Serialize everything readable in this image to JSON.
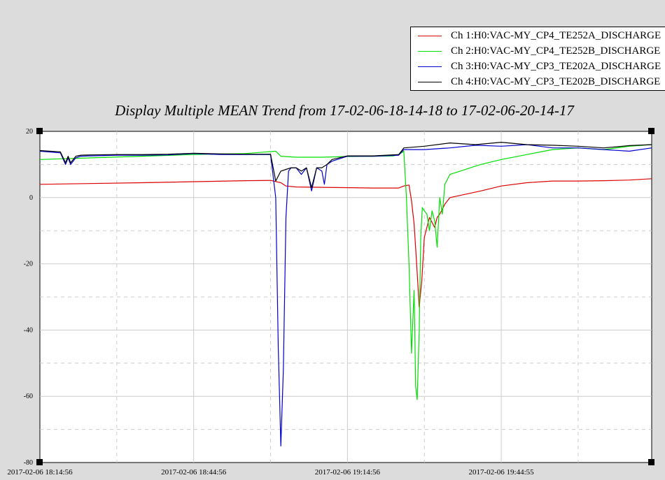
{
  "legend": {
    "items": [
      {
        "label": "Ch 1:H0:VAC-MY_CP4_TE252A_DISCHARGE",
        "color": "#dd0000"
      },
      {
        "label": "Ch 2:H0:VAC-MY_CP4_TE252B_DISCHARGE",
        "color": "#00e000"
      },
      {
        "label": "Ch 3:H0:VAC-MY_CP3_TE202A_DISCHARGE",
        "color": "#0000cc"
      },
      {
        "label": "Ch 4:H0:VAC-MY_CP3_TE202B_DISCHARGE",
        "color": "#000000"
      }
    ]
  },
  "chart_data": {
    "type": "line",
    "title": "Display Multiple MEAN Trend from 17-02-06-18-14-18 to 17-02-06-20-14-17",
    "xlabel": "",
    "ylabel": "",
    "ylim": [
      -80,
      20
    ],
    "xlim": [
      "2017-02-06 18:14:56",
      "2017-02-06 20:14:17"
    ],
    "yticks": [
      "20",
      "0",
      "-20",
      "-40",
      "-60",
      "-80"
    ],
    "xticks": [
      "2017-02-06 18:14:56",
      "2017-02-06 18:44:56",
      "2017-02-06 19:14:56",
      "2017-02-06 19:44:55"
    ],
    "grid": true,
    "legend_position": "top-right",
    "series": [
      {
        "name": "Ch 1:H0:VAC-MY_CP4_TE252A_DISCHARGE",
        "color": "#dd0000",
        "x_minutes": [
          0,
          20,
          40,
          45,
          47,
          48,
          50,
          55,
          65,
          70,
          71,
          72,
          72.5,
          73,
          73.5,
          74,
          74.5,
          75,
          76,
          77,
          77.5,
          78,
          79,
          80,
          83,
          86,
          90,
          95,
          100,
          105,
          110,
          115,
          119.35
        ],
        "values": [
          4,
          4.5,
          5.1,
          5.2,
          4.5,
          3.5,
          3.2,
          3.1,
          2.9,
          2.9,
          3.5,
          3.8,
          -1,
          -8,
          -20,
          -33,
          -25,
          -12,
          -6,
          -9,
          -6,
          -5,
          -2,
          0,
          1,
          2,
          3.5,
          4.5,
          5,
          5,
          5.1,
          5.3,
          5.7
        ]
      },
      {
        "name": "Ch 2:H0:VAC-MY_CP4_TE252B_DISCHARGE",
        "color": "#00e000",
        "x_minutes": [
          0,
          10,
          20,
          30,
          40,
          46,
          47,
          50,
          55,
          60,
          65,
          69,
          70,
          71,
          71.5,
          72,
          72.5,
          73,
          73.3,
          73.6,
          74,
          74.3,
          74.6,
          75,
          75.5,
          76,
          76.5,
          77,
          77.5,
          78,
          78.5,
          79,
          80,
          82,
          84,
          86,
          90,
          95,
          100,
          105,
          110,
          115,
          119.35
        ],
        "values": [
          11.5,
          12,
          12.5,
          13,
          13.3,
          14,
          12.5,
          12.2,
          12.2,
          12.4,
          12.5,
          12.6,
          13,
          14,
          0,
          -20,
          -47,
          -28,
          -57,
          -61,
          -40,
          -12,
          -3,
          -4,
          -5,
          -10,
          -4,
          -7,
          -15,
          0,
          -5,
          4,
          7,
          8,
          9,
          10,
          11.5,
          13,
          14.5,
          15,
          14.5,
          15.5,
          16
        ]
      },
      {
        "name": "Ch 3:H0:VAC-MY_CP3_TE202A_DISCHARGE",
        "color": "#0000cc",
        "x_minutes": [
          0,
          4,
          5,
          5.5,
          6,
          7,
          8,
          10,
          15,
          20,
          25,
          30,
          35,
          40,
          45,
          46,
          46.5,
          47,
          47.5,
          48,
          48.5,
          49,
          50,
          51,
          52,
          53,
          54,
          55,
          55.5,
          56,
          57,
          60,
          65,
          70,
          71,
          75,
          80,
          85,
          90,
          95,
          100,
          105,
          110,
          115,
          119.35
        ],
        "values": [
          14,
          13.5,
          10,
          12,
          10,
          12,
          12.5,
          12.6,
          12.8,
          12.8,
          12.9,
          13.3,
          13,
          13,
          13,
          0,
          -45,
          -75,
          -52,
          -6,
          8,
          9,
          9,
          7,
          9,
          2,
          9,
          8,
          4,
          10,
          11,
          12.5,
          12.5,
          12.8,
          14.5,
          14.5,
          15,
          15.8,
          15.5,
          16,
          15,
          15,
          14.5,
          14,
          15
        ]
      },
      {
        "name": "Ch 4:H0:VAC-MY_CP3_TE202B_DISCHARGE",
        "color": "#000000",
        "x_minutes": [
          0,
          4,
          5,
          5.5,
          6,
          7,
          8,
          10,
          15,
          20,
          25,
          30,
          35,
          40,
          45,
          46,
          47,
          48,
          49,
          50,
          51,
          52,
          53,
          54,
          55,
          56,
          57,
          60,
          65,
          70,
          71,
          75,
          80,
          85,
          90,
          95,
          100,
          105,
          110,
          115,
          119.35
        ],
        "values": [
          14.2,
          13.8,
          10.5,
          12.5,
          10.5,
          12.5,
          12.8,
          12.9,
          13,
          13,
          13.1,
          13.4,
          13.2,
          13.1,
          13.1,
          5,
          8,
          8.5,
          9,
          9,
          8,
          9,
          3,
          9,
          9,
          10,
          11.5,
          12.6,
          12.6,
          13,
          15,
          15.5,
          16.5,
          16,
          16.7,
          16,
          15.8,
          15.5,
          15,
          15.7,
          16
        ]
      }
    ]
  }
}
